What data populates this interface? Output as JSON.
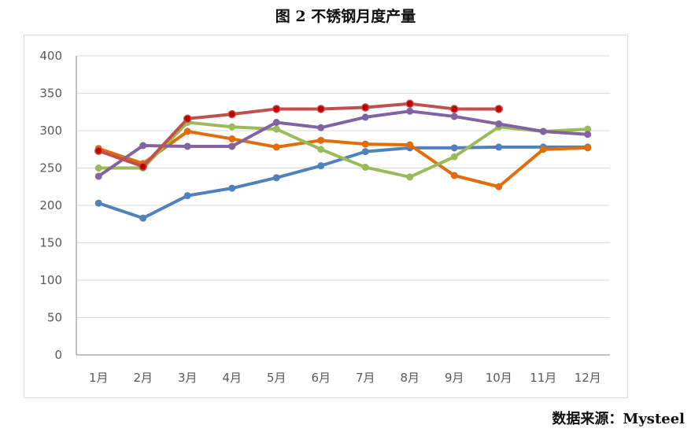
{
  "title": "图 2  不锈钢月度产量",
  "source": "数据来源：Mysteel",
  "chart_data": {
    "type": "line",
    "categories": [
      "1月",
      "2月",
      "3月",
      "4月",
      "5月",
      "6月",
      "7月",
      "8月",
      "9月",
      "10月",
      "11月",
      "12月"
    ],
    "ylim": [
      0,
      400
    ],
    "yticks": [
      0,
      50,
      100,
      150,
      200,
      250,
      300,
      350,
      400
    ],
    "grid": true,
    "legend": "none",
    "series": [
      {
        "color": "#4f81bd",
        "values": [
          203,
          183,
          213,
          223,
          237,
          253,
          272,
          277,
          277,
          278,
          278,
          278
        ]
      },
      {
        "color": "#e36c09",
        "values": [
          276,
          256,
          299,
          289,
          278,
          287,
          282,
          281,
          240,
          225,
          275,
          277
        ]
      },
      {
        "color": "#9bbb59",
        "values": [
          250,
          250,
          311,
          305,
          302,
          275,
          251,
          238,
          265,
          305,
          299,
          302
        ]
      },
      {
        "color": "#8064a2",
        "values": [
          239,
          280,
          279,
          279,
          311,
          304,
          318,
          326,
          319,
          309,
          299,
          295
        ]
      },
      {
        "color": "#c0504d",
        "values": [
          273,
          252,
          316,
          322,
          329,
          329,
          331,
          336,
          329,
          329,
          null,
          null
        ]
      }
    ]
  }
}
